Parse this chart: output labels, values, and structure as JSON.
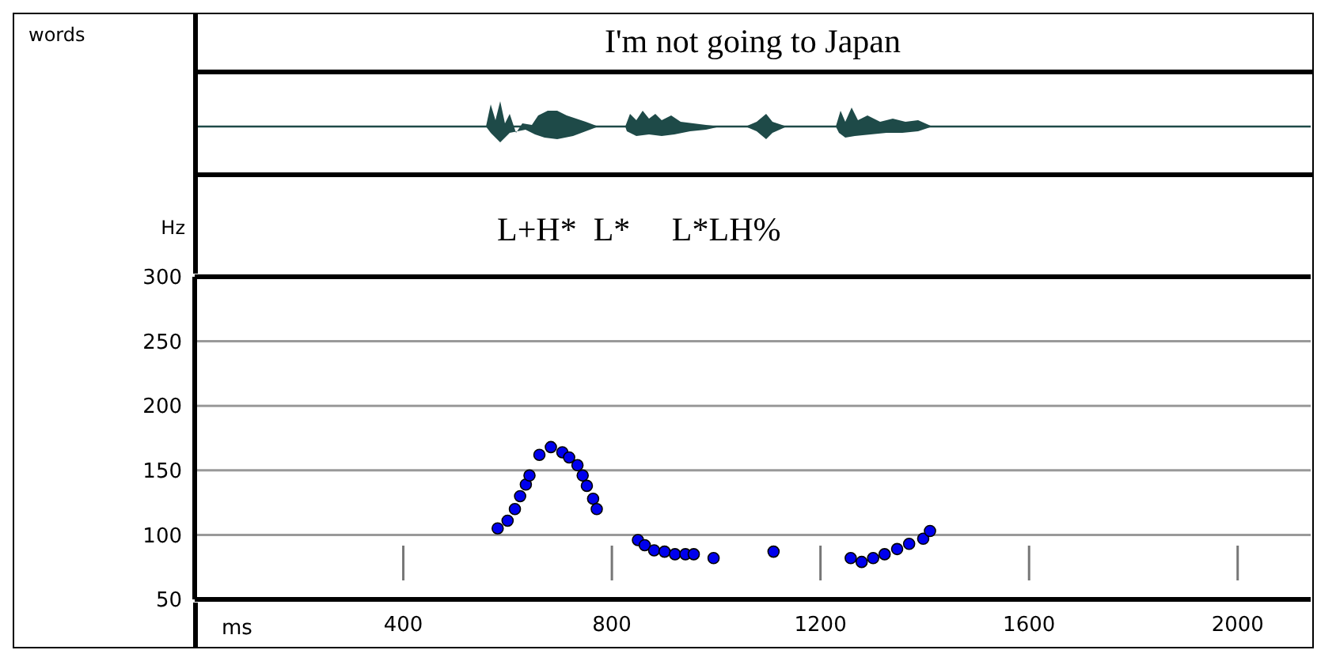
{
  "chart_data": {
    "type": "scatter",
    "title": "I'm not going to Japan",
    "xlabel": "ms",
    "ylabel": "Hz",
    "annotations": [
      "words",
      "L+H*  L*     L*LH%"
    ],
    "x": [
      581,
      600,
      614,
      624,
      635,
      642,
      661,
      683,
      705,
      718,
      734,
      744,
      752,
      764,
      771,
      850,
      863,
      881,
      901,
      921,
      941,
      957,
      995,
      1110,
      1258,
      1279,
      1301,
      1323,
      1347,
      1370,
      1397,
      1410
    ],
    "values": [
      105,
      111,
      120,
      130,
      139,
      146,
      162,
      168,
      164,
      160,
      154,
      146,
      138,
      128,
      120,
      96,
      92,
      88,
      87,
      85,
      85,
      85,
      82,
      87,
      82,
      79,
      82,
      85,
      89,
      93,
      97,
      103
    ],
    "color": "#0000ee",
    "marker": "circle",
    "xlim": [
      0,
      2140
    ],
    "ylim": [
      50,
      300
    ],
    "xticks": [
      400,
      800,
      1200,
      1600,
      2000
    ],
    "yticks": [
      50,
      100,
      150,
      200,
      250,
      300
    ],
    "grid": "y"
  }
}
